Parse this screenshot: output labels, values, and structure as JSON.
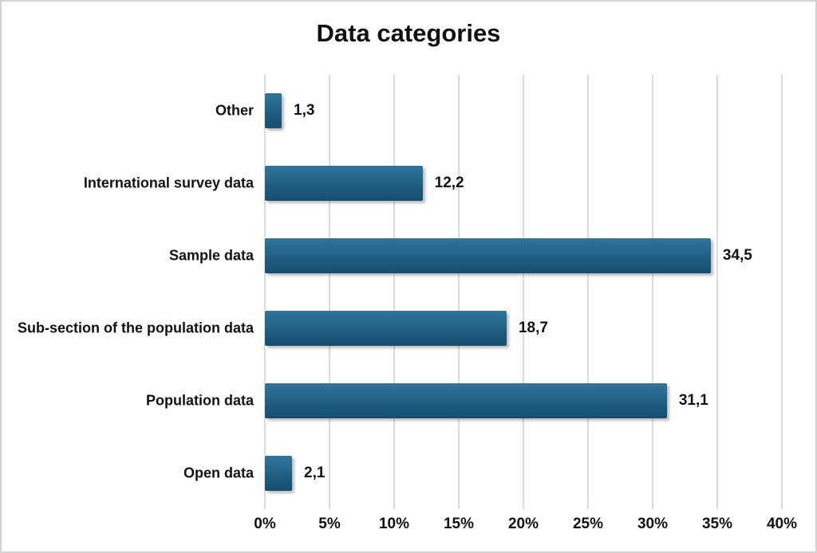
{
  "chart_data": {
    "type": "bar",
    "orientation": "horizontal",
    "title": "Data categories",
    "categories": [
      "Other",
      "International survey data",
      "Sample data",
      "Sub-section of the population data",
      "Population data",
      "Open data"
    ],
    "values": [
      1.3,
      12.2,
      34.5,
      18.7,
      31.1,
      2.1
    ],
    "value_labels": [
      "1,3",
      "12,2",
      "34,5",
      "18,7",
      "31,1",
      "2,1"
    ],
    "x_ticks": [
      "0%",
      "5%",
      "10%",
      "15%",
      "20%",
      "25%",
      "30%",
      "35%",
      "40%"
    ],
    "x_tick_values": [
      0,
      5,
      10,
      15,
      20,
      25,
      30,
      35,
      40
    ],
    "xlim": [
      0,
      40
    ],
    "grid": true,
    "legend": false,
    "colors": {
      "bar_top": "#33749b",
      "bar_bottom": "#164e6e",
      "gridline": "#dadada",
      "text": "#111111",
      "background": "#ffffff",
      "frame_border": "#d2d2d2"
    }
  }
}
